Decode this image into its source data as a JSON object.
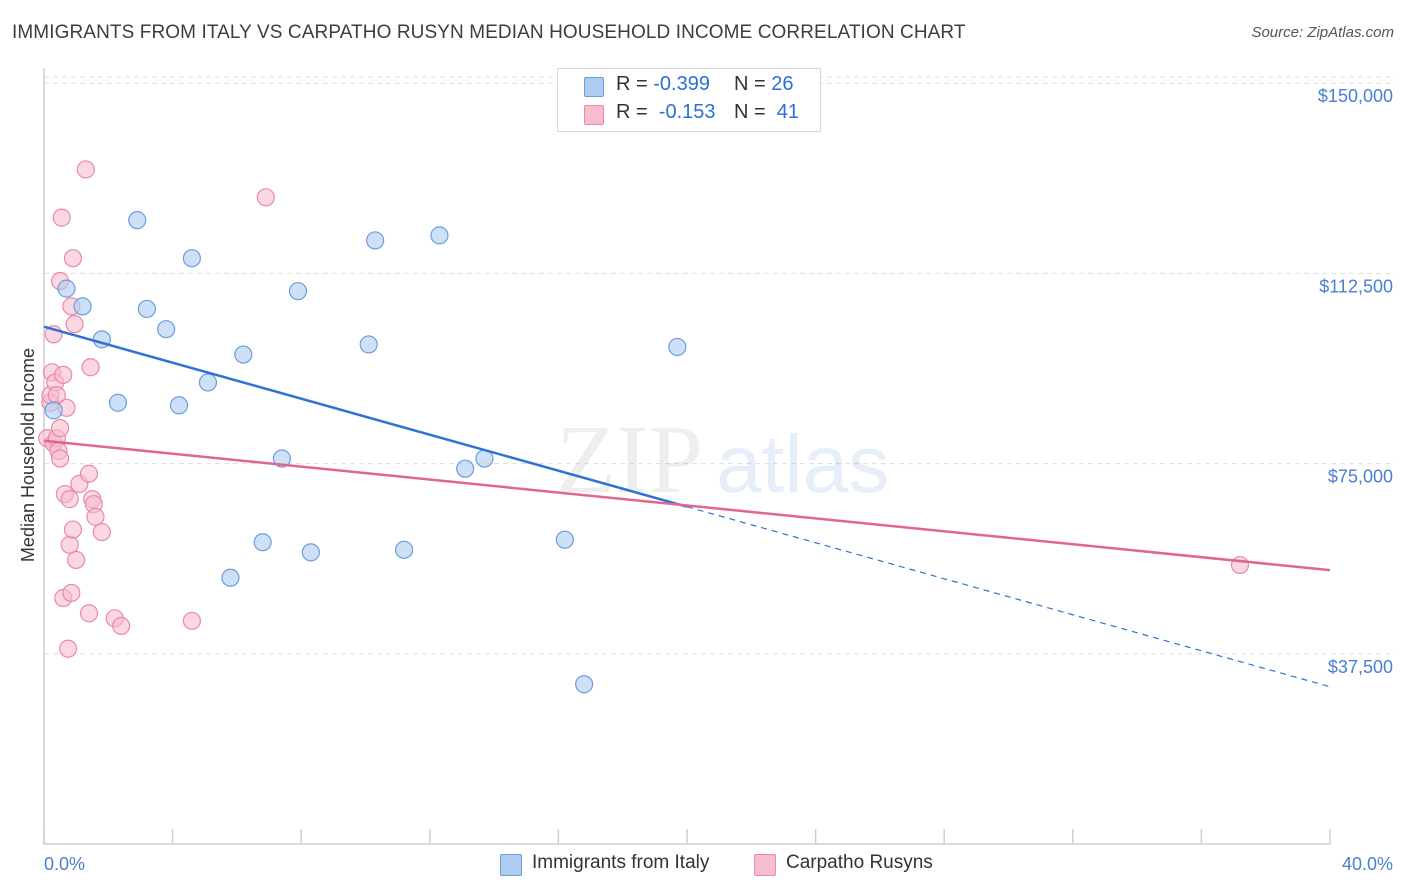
{
  "title": "IMMIGRANTS FROM ITALY VS CARPATHO RUSYN MEDIAN HOUSEHOLD INCOME CORRELATION CHART",
  "source": "Source: ZipAtlas.com",
  "watermark": {
    "zip": "ZIP",
    "atlas": "atlas"
  },
  "legend": {
    "rows": [
      {
        "r_label": "R = ",
        "r_value": "-0.399",
        "n_label": "N = ",
        "n_value": "26"
      },
      {
        "r_label": "R = ",
        "r_value": " -0.153",
        "n_label": "N = ",
        "n_value": " 41"
      }
    ]
  },
  "bottom_legend": [
    "Immigrants from Italy",
    "Carpatho Rusyns"
  ],
  "colors": {
    "italy_fill": "#aecbf0",
    "italy_stroke": "#6a9ee0",
    "italy_line": "#2f72d4",
    "rusyn_fill": "#f7bccd",
    "rusyn_stroke": "#e88aa8",
    "rusyn_line": "#e06690",
    "tick_text": "#4a7fd0",
    "grid": "#dddddd"
  },
  "chart_data": {
    "type": "scatter",
    "title": "IMMIGRANTS FROM ITALY VS CARPATHO RUSYN MEDIAN HOUSEHOLD INCOME CORRELATION CHART",
    "xlabel": "",
    "ylabel": "Median Household Income",
    "xlim": [
      0,
      40
    ],
    "ylim": [
      0,
      153000
    ],
    "y_ticks": [
      37500,
      75000,
      112500,
      150000
    ],
    "y_tick_labels": [
      "$37,500",
      "$75,000",
      "$112,500",
      "$150,000"
    ],
    "x_tick_labels": [
      "0.0%",
      "40.0%"
    ],
    "grid": true,
    "legend_position": "top-center",
    "series": [
      {
        "name": "Immigrants from Italy",
        "r": -0.399,
        "n": 26,
        "points": [
          [
            0.3,
            85500
          ],
          [
            0.7,
            109500
          ],
          [
            1.2,
            106000
          ],
          [
            1.8,
            99500
          ],
          [
            2.3,
            87000
          ],
          [
            2.9,
            123000
          ],
          [
            3.2,
            105500
          ],
          [
            3.8,
            101500
          ],
          [
            4.2,
            86500
          ],
          [
            4.6,
            115500
          ],
          [
            5.1,
            91000
          ],
          [
            5.8,
            52500
          ],
          [
            6.2,
            96500
          ],
          [
            6.8,
            59500
          ],
          [
            7.4,
            76000
          ],
          [
            7.9,
            109000
          ],
          [
            8.3,
            57500
          ],
          [
            10.1,
            98500
          ],
          [
            10.3,
            119000
          ],
          [
            11.2,
            58000
          ],
          [
            12.3,
            120000
          ],
          [
            13.1,
            74000
          ],
          [
            13.7,
            76000
          ],
          [
            16.2,
            60000
          ],
          [
            16.8,
            31500
          ],
          [
            19.7,
            98000
          ]
        ],
        "trend": {
          "x": [
            0,
            20
          ],
          "y": [
            102000,
            66500
          ],
          "dashed_to": {
            "x": 40,
            "y": 31000
          }
        }
      },
      {
        "name": "Carpatho Rusyns",
        "r": -0.153,
        "n": 41,
        "points": [
          [
            0.1,
            80000
          ],
          [
            0.2,
            87000
          ],
          [
            0.2,
            88500
          ],
          [
            0.25,
            93000
          ],
          [
            0.3,
            100500
          ],
          [
            0.3,
            79000
          ],
          [
            0.35,
            91000
          ],
          [
            0.4,
            88500
          ],
          [
            0.4,
            80000
          ],
          [
            0.45,
            77500
          ],
          [
            0.5,
            111000
          ],
          [
            0.5,
            76000
          ],
          [
            0.5,
            82000
          ],
          [
            0.55,
            123500
          ],
          [
            0.6,
            92500
          ],
          [
            0.6,
            48500
          ],
          [
            0.65,
            69000
          ],
          [
            0.7,
            86000
          ],
          [
            0.75,
            38500
          ],
          [
            0.8,
            68000
          ],
          [
            0.8,
            59000
          ],
          [
            0.85,
            106000
          ],
          [
            0.85,
            49500
          ],
          [
            0.9,
            115500
          ],
          [
            0.9,
            62000
          ],
          [
            0.95,
            102500
          ],
          [
            1.0,
            56000
          ],
          [
            1.1,
            71000
          ],
          [
            1.3,
            133000
          ],
          [
            1.4,
            45500
          ],
          [
            1.4,
            73000
          ],
          [
            1.45,
            94000
          ],
          [
            1.5,
            68000
          ],
          [
            1.55,
            67000
          ],
          [
            1.6,
            64500
          ],
          [
            1.8,
            61500
          ],
          [
            2.2,
            44500
          ],
          [
            2.4,
            43000
          ],
          [
            4.6,
            44000
          ],
          [
            6.9,
            127500
          ],
          [
            37.2,
            55000
          ]
        ],
        "trend": {
          "x": [
            0,
            40
          ],
          "y": [
            79500,
            54000
          ]
        }
      }
    ]
  }
}
